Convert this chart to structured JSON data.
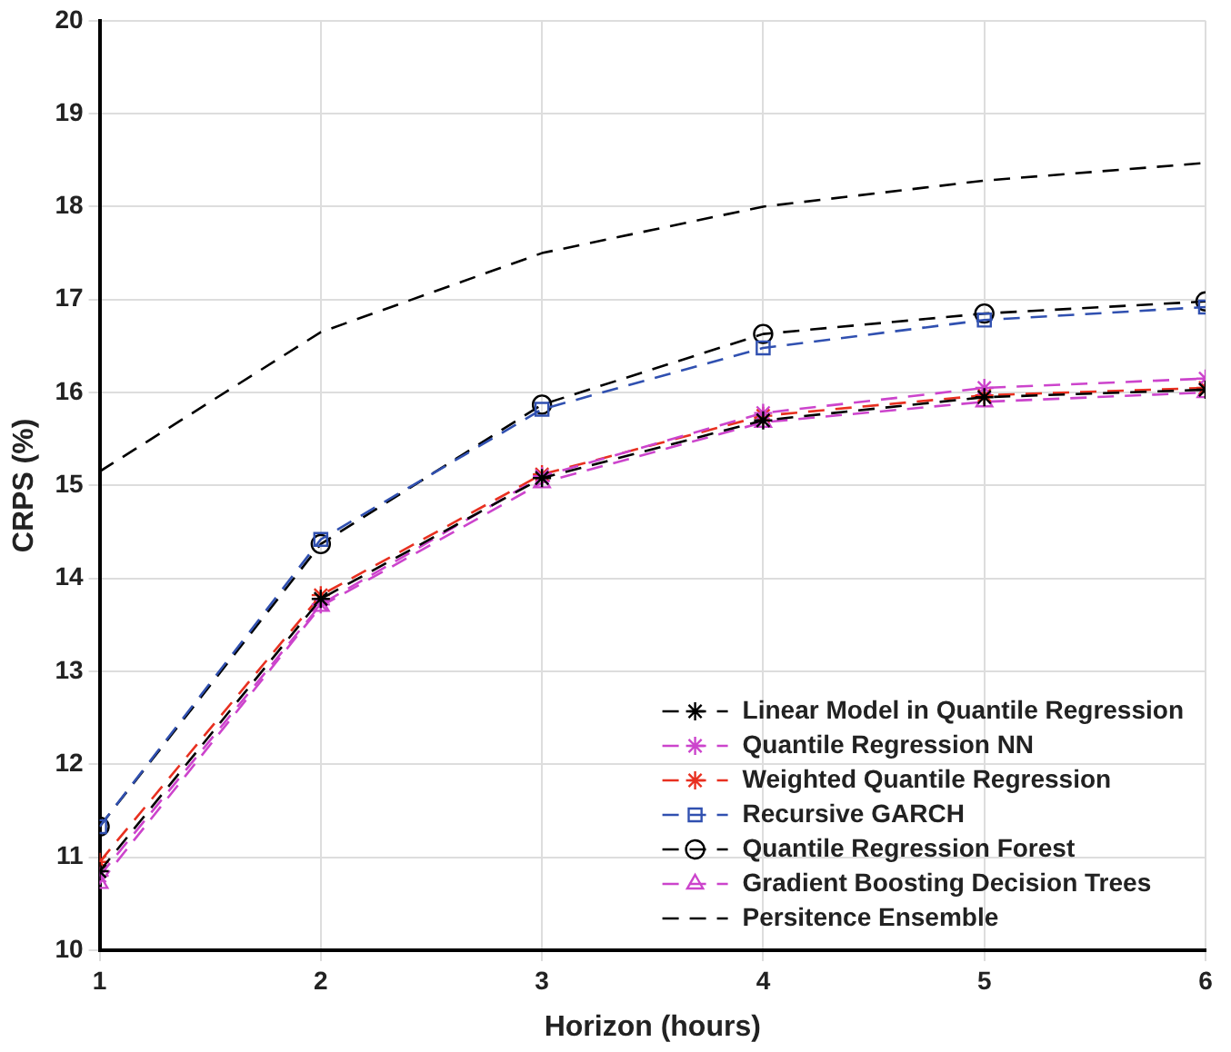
{
  "chart_data": {
    "type": "line",
    "xlabel": "Horizon (hours)",
    "ylabel": "CRPS (%)",
    "x": [
      1,
      2,
      3,
      4,
      5,
      6
    ],
    "xlim": [
      1,
      6
    ],
    "xticks": [
      1,
      2,
      3,
      4,
      5,
      6
    ],
    "ylim": [
      10,
      20
    ],
    "yticks": [
      10,
      11,
      12,
      13,
      14,
      15,
      16,
      17,
      18,
      19,
      20
    ],
    "grid": true,
    "legend": "bottom right",
    "series": [
      {
        "name": "Linear Model in Quantile Regression",
        "color": "#000000",
        "marker": "cross",
        "line_style": "dashed",
        "values": [
          10.85,
          13.78,
          15.08,
          15.7,
          15.95,
          16.03
        ]
      },
      {
        "name": "Quantile Regression NN",
        "color": "#cc44cc",
        "marker": "cross",
        "line_style": "dashed",
        "values": [
          10.8,
          13.72,
          15.1,
          15.78,
          16.05,
          16.15
        ]
      },
      {
        "name": "Weighted Quantile Regression",
        "color": "#e83020",
        "marker": "cross",
        "line_style": "dashed",
        "values": [
          10.95,
          13.82,
          15.12,
          15.75,
          15.97,
          16.05
        ]
      },
      {
        "name": "Recursive GARCH",
        "color": "#3050b0",
        "marker": "square",
        "line_style": "dashed",
        "values": [
          11.33,
          14.42,
          15.82,
          16.48,
          16.78,
          16.92
        ]
      },
      {
        "name": "Quantile Regression Forest",
        "color": "#000000",
        "marker": "circle",
        "line_style": "dashed",
        "values": [
          11.33,
          14.37,
          15.87,
          16.63,
          16.85,
          16.98
        ]
      },
      {
        "name": "Gradient Boosting Decision Trees",
        "color": "#cc44cc",
        "marker": "triangle",
        "line_style": "dashed",
        "values": [
          10.72,
          13.7,
          15.03,
          15.68,
          15.9,
          16.0
        ]
      },
      {
        "name": "Persitence Ensemble",
        "color": "#000000",
        "marker": "none",
        "line_style": "dashed",
        "values": [
          15.15,
          16.65,
          17.5,
          18.0,
          18.28,
          18.47
        ]
      }
    ]
  }
}
